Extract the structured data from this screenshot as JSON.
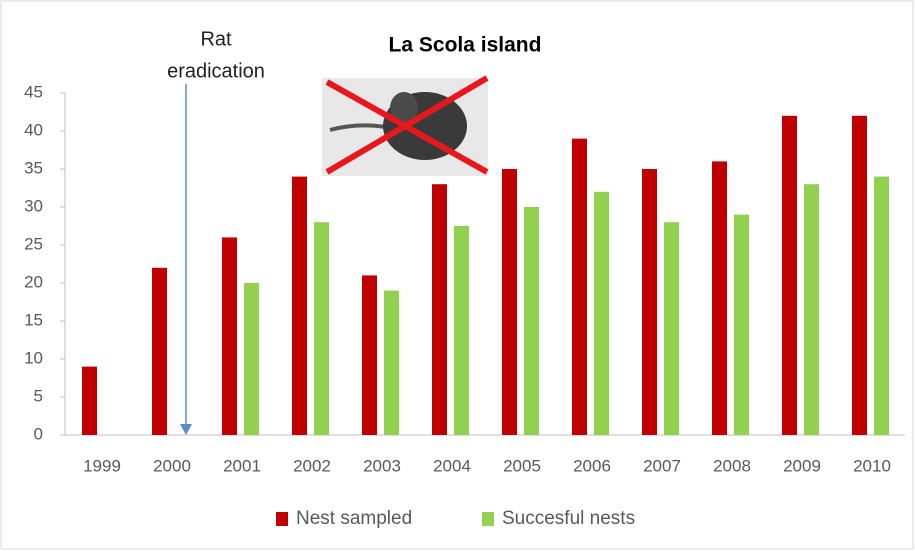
{
  "chart_data": {
    "type": "bar",
    "title": "La Scola island",
    "annotation": [
      "Rat",
      "eradication"
    ],
    "categories": [
      "1999",
      "2000",
      "2001",
      "2002",
      "2003",
      "2004",
      "2005",
      "2006",
      "2007",
      "2008",
      "2009",
      "2010"
    ],
    "series": [
      {
        "name": "Nest sampled",
        "color": "#c00000",
        "values": [
          9,
          22,
          26,
          34,
          21,
          33,
          35,
          39,
          35,
          36,
          42,
          42
        ]
      },
      {
        "name": "Succesful nests",
        "color": "#92d050",
        "values": [
          null,
          null,
          20,
          28,
          19,
          27.5,
          30,
          32,
          28,
          29,
          33,
          34
        ]
      }
    ],
    "ylim": [
      0,
      45
    ],
    "yticks": [
      0,
      5,
      10,
      15,
      20,
      25,
      30,
      35,
      40,
      45
    ],
    "grid": false
  }
}
